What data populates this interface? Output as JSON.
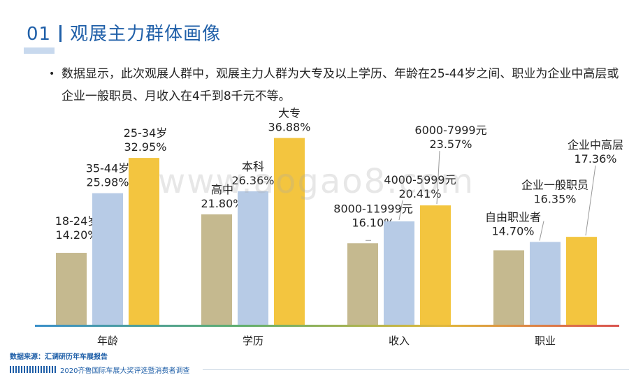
{
  "header": {
    "number": "01",
    "title": "观展主力群体画像"
  },
  "summary": {
    "bullet": "•",
    "text": "数据显示，此次观展人群中，观展主力人群为大专及以上学历、年龄在25-44岁之间、职业为企业中高层或企业一般职员、月收入在4千到8千元不等。"
  },
  "watermark": "www.aogao8.com",
  "source": "数据来源：汇调研历年车展报告",
  "footer": "2020齐鲁国际车展大奖评选暨消费者调查",
  "colors": {
    "bar1": "#c5b98f",
    "bar2": "#b7cbe6",
    "bar3": "#f3c53f",
    "title": "#1f5fa8"
  },
  "chart_data": {
    "type": "bar",
    "ylim": [
      0,
      40
    ],
    "groups": [
      {
        "category": "年龄",
        "bars": [
          {
            "label": "18-24岁",
            "value": 14.2,
            "value_text": "14.20%"
          },
          {
            "label": "35-44岁",
            "value": 25.98,
            "value_text": "25.98%"
          },
          {
            "label": "25-34岁",
            "value": 32.95,
            "value_text": "32.95%"
          }
        ]
      },
      {
        "category": "学历",
        "bars": [
          {
            "label": "高中",
            "value": 21.8,
            "value_text": "21.80%"
          },
          {
            "label": "本科",
            "value": 26.36,
            "value_text": "26.36%"
          },
          {
            "label": "大专",
            "value": 36.88,
            "value_text": "36.88%"
          }
        ]
      },
      {
        "category": "收入",
        "bars": [
          {
            "label": "8000-11999元",
            "value": 16.1,
            "value_text": "16.10%"
          },
          {
            "label": "4000-5999元",
            "value": 20.41,
            "value_text": "20.41%"
          },
          {
            "label": "6000-7999元",
            "value": 23.57,
            "value_text": "23.57%"
          }
        ]
      },
      {
        "category": "职业",
        "bars": [
          {
            "label": "自由职业者",
            "value": 14.7,
            "value_text": "14.70%"
          },
          {
            "label": "企业一般职员",
            "value": 16.35,
            "value_text": "16.35%"
          },
          {
            "label": "企业中高层",
            "value": 17.36,
            "value_text": "17.36%"
          }
        ]
      }
    ]
  }
}
